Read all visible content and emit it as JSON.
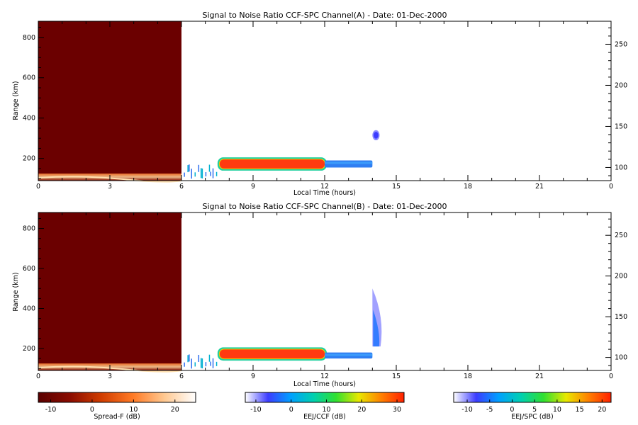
{
  "chart_data": [
    {
      "type": "heatmap",
      "title": "Signal to Noise Ratio CCF-SPC Channel(A) - Date: 01-Dec-2000",
      "xlabel": "Local Time (hours)",
      "ylabel": "Range (km)",
      "xlim": [
        0,
        24
      ],
      "ylim": [
        90,
        880
      ],
      "y2lim": [
        84,
        278
      ],
      "xticks": [
        "0",
        "3",
        "6",
        "9",
        "12",
        "15",
        "18",
        "21",
        "0"
      ],
      "yticks": [
        200,
        400,
        600,
        800
      ],
      "y2ticks": [
        100,
        150,
        200,
        250
      ],
      "regions": [
        {
          "name": "spread-f",
          "x": [
            0,
            6
          ],
          "y": [
            90,
            880
          ],
          "value": -12
        },
        {
          "name": "spread-f-bottom",
          "x": [
            0,
            6
          ],
          "y": [
            90,
            125
          ],
          "value": 15
        },
        {
          "name": "eej-ccf",
          "x": [
            7.6,
            12
          ],
          "y": [
            150,
            195
          ],
          "value": 28
        },
        {
          "name": "eej-spc",
          "x": [
            12,
            14
          ],
          "y": [
            155,
            190
          ],
          "value": 0
        },
        {
          "name": "scattered",
          "x": [
            6,
            7.5
          ],
          "y": [
            130,
            200
          ],
          "value": 0
        },
        {
          "name": "patch",
          "x": [
            14,
            14.3
          ],
          "y": [
            290,
            340
          ],
          "value": -8
        }
      ]
    },
    {
      "type": "heatmap",
      "title": "Signal to Noise Ratio CCF-SPC Channel(B) - Date: 01-Dec-2000",
      "xlabel": "Local Time (hours)",
      "ylabel": "Range (km)",
      "xlim": [
        0,
        24
      ],
      "ylim": [
        90,
        880
      ],
      "y2lim": [
        84,
        278
      ],
      "xticks": [
        "0",
        "3",
        "6",
        "9",
        "12",
        "15",
        "18",
        "21",
        "0"
      ],
      "yticks": [
        200,
        400,
        600,
        800
      ],
      "y2ticks": [
        100,
        150,
        200,
        250
      ],
      "regions": [
        {
          "name": "spread-f",
          "x": [
            0,
            6
          ],
          "y": [
            90,
            880
          ],
          "value": -12
        },
        {
          "name": "spread-f-bottom",
          "x": [
            0,
            6
          ],
          "y": [
            90,
            125
          ],
          "value": 15
        },
        {
          "name": "eej-ccf",
          "x": [
            7.6,
            12
          ],
          "y": [
            150,
            195
          ],
          "value": 28
        },
        {
          "name": "eej-spc",
          "x": [
            12,
            14
          ],
          "y": [
            150,
            180
          ],
          "value": 0
        },
        {
          "name": "scattered",
          "x": [
            6,
            7.5
          ],
          "y": [
            130,
            200
          ],
          "value": 0
        },
        {
          "name": "plume",
          "x": [
            14,
            14.4
          ],
          "y": [
            210,
            500
          ],
          "value": -8
        }
      ]
    }
  ],
  "colorbars": [
    {
      "label": "Spread-F (dB)",
      "ticks": [
        "-10",
        "0",
        "10",
        "20"
      ],
      "range": [
        -13,
        25
      ],
      "tickvals": [
        -10,
        0,
        10,
        20
      ],
      "colors": [
        "#5a0000",
        "#8a0c00",
        "#d03d00",
        "#ff7a25",
        "#ffc890",
        "#ffffff"
      ]
    },
    {
      "label": "EEJ/CCF (dB)",
      "ticks": [
        "-10",
        "0",
        "10",
        "20",
        "30"
      ],
      "range": [
        -13,
        32
      ],
      "tickvals": [
        -10,
        0,
        10,
        20,
        30
      ],
      "colors": [
        "#ffffff",
        "#3c3cff",
        "#00a0ff",
        "#00d0b0",
        "#30e030",
        "#e8e800",
        "#ff8000",
        "#ff2000"
      ]
    },
    {
      "label": "EEJ/SPC (dB)",
      "ticks": [
        "-10",
        "-5",
        "0",
        "5",
        "10",
        "15",
        "20"
      ],
      "range": [
        -13,
        22
      ],
      "tickvals": [
        -10,
        -5,
        0,
        5,
        10,
        15,
        20
      ],
      "colors": [
        "#ffffff",
        "#3c3cff",
        "#00a0ff",
        "#00d0b0",
        "#30e030",
        "#e8e800",
        "#ff8000",
        "#ff2000"
      ]
    }
  ]
}
